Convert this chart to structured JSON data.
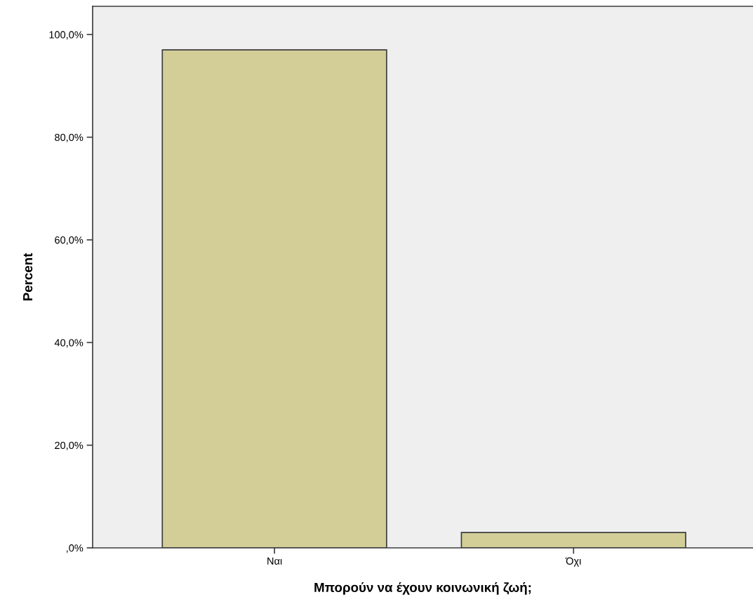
{
  "chart_data": {
    "type": "bar",
    "xlabel": "Μπορούν να έχουν κοινωνική ζωή;",
    "ylabel": "Percent",
    "categories": [
      "Ναι",
      "Όχι"
    ],
    "values": [
      97.0,
      3.0
    ],
    "color": "#d3ce98",
    "ylim": [
      0,
      105.5
    ],
    "yticks": [
      {
        "value": 0,
        "label": ",0%"
      },
      {
        "value": 20,
        "label": "20,0%"
      },
      {
        "value": 40,
        "label": "40,0%"
      },
      {
        "value": 60,
        "label": "60,0%"
      },
      {
        "value": 80,
        "label": "80,0%"
      },
      {
        "value": 100,
        "label": "100,0%"
      }
    ],
    "grid": false
  }
}
